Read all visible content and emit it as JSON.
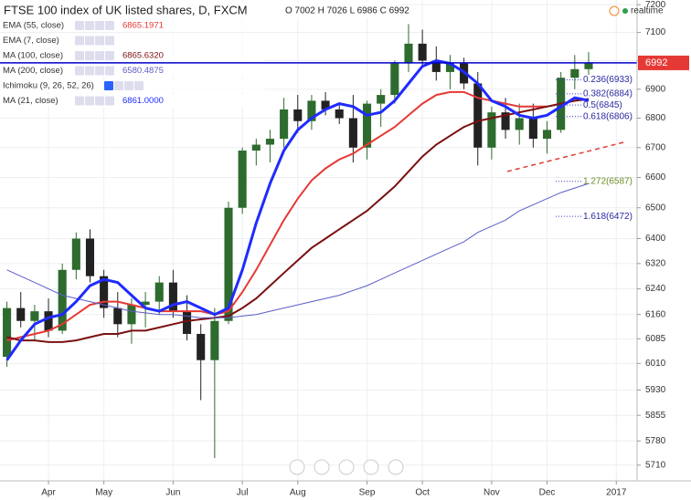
{
  "chart_data": {
    "type": "candlestick",
    "title": "FTSE 100 index of UK listed shares, D, FXCM",
    "ohlc_text": "O 7002 H 7026 L 6986 C 6992",
    "status": "realtime",
    "log_scale": true,
    "grid": true,
    "ylim": [
      5665,
      7217
    ],
    "yticks": [
      5710,
      5780,
      5855,
      5930,
      6010,
      6085,
      6160,
      6240,
      6320,
      6400,
      6500,
      6600,
      6700,
      6800,
      6900,
      7000,
      7100,
      7200
    ],
    "categories": [
      null,
      null,
      null,
      "Apr",
      null,
      null,
      null,
      "May",
      null,
      null,
      null,
      null,
      "Jun",
      null,
      null,
      null,
      null,
      "Jul",
      null,
      null,
      null,
      "Aug",
      null,
      null,
      null,
      null,
      "Sep",
      null,
      null,
      null,
      "Oct",
      null,
      null,
      null,
      null,
      "Nov",
      null,
      null,
      null,
      "Dec",
      null,
      null,
      null,
      null,
      "2017",
      null
    ],
    "up_color": "#2e6b2e",
    "down_color": "#222222",
    "open": [
      6030,
      6180,
      6140,
      6170,
      6110,
      6300,
      6400,
      6280,
      6180,
      6130,
      6190,
      6200,
      6260,
      6170,
      6100,
      6020,
      6140,
      6500,
      6690,
      6710,
      6730,
      6830,
      6790,
      6860,
      6830,
      6800,
      6700,
      6850,
      6880,
      6990,
      7060,
      7000,
      6960,
      6990,
      6920,
      6700,
      6820,
      6760,
      6800,
      6730,
      6760,
      6940,
      6970,
      null,
      null,
      null
    ],
    "high": [
      6200,
      6230,
      6190,
      6210,
      6320,
      6420,
      6430,
      6300,
      6230,
      6210,
      6230,
      6280,
      6300,
      6220,
      6130,
      6180,
      6520,
      6700,
      6730,
      6760,
      6870,
      6880,
      6880,
      6890,
      6850,
      6880,
      6860,
      6900,
      7000,
      7130,
      7110,
      7050,
      7020,
      7010,
      6960,
      6840,
      6870,
      6850,
      6850,
      6790,
      6960,
      7020,
      7030,
      null,
      null,
      null
    ],
    "low": [
      6000,
      6120,
      6080,
      6090,
      6100,
      6270,
      6260,
      6150,
      6090,
      6070,
      6120,
      6160,
      6150,
      6080,
      5900,
      5730,
      6130,
      6480,
      6640,
      6650,
      6700,
      6750,
      6760,
      6810,
      6780,
      6650,
      6660,
      6770,
      6850,
      6960,
      6980,
      6930,
      6900,
      6900,
      6640,
      6660,
      6730,
      6710,
      6700,
      6680,
      6750,
      6900,
      6950,
      null,
      null,
      null
    ],
    "close": [
      6180,
      6140,
      6170,
      6110,
      6300,
      6400,
      6280,
      6180,
      6130,
      6190,
      6200,
      6260,
      6170,
      6100,
      6020,
      6140,
      6500,
      6690,
      6710,
      6730,
      6830,
      6790,
      6860,
      6830,
      6800,
      6700,
      6850,
      6880,
      6990,
      7060,
      7000,
      6960,
      6990,
      6920,
      6700,
      6820,
      6760,
      6800,
      6730,
      6760,
      6940,
      6970,
      6992,
      null,
      null,
      null
    ],
    "series": [
      {
        "name": "EMA (55, close)",
        "color": "#e53935",
        "width": 2,
        "last_label": "6865.1971",
        "values": [
          6080,
          6090,
          6100,
          6110,
          6130,
          6160,
          6190,
          6200,
          6200,
          6190,
          6180,
          6170,
          6170,
          6170,
          6170,
          6160,
          6170,
          6230,
          6300,
          6380,
          6460,
          6530,
          6590,
          6630,
          6660,
          6680,
          6710,
          6740,
          6770,
          6810,
          6850,
          6880,
          6890,
          6890,
          6870,
          6860,
          6850,
          6840,
          6840,
          6840,
          6850,
          6860,
          6865,
          null,
          null,
          null
        ]
      },
      {
        "name": "EMA (7, close)",
        "color": "#888888"
      },
      {
        "name": "MA (100, close)",
        "color": "#7b1010",
        "width": 2,
        "last_label": "6865.6320",
        "values": [
          6090,
          6080,
          6080,
          6075,
          6075,
          6080,
          6090,
          6100,
          6100,
          6110,
          6110,
          6120,
          6130,
          6140,
          6145,
          6150,
          6155,
          6180,
          6210,
          6250,
          6290,
          6330,
          6370,
          6400,
          6430,
          6460,
          6490,
          6530,
          6570,
          6620,
          6670,
          6710,
          6740,
          6770,
          6790,
          6800,
          6810,
          6820,
          6830,
          6840,
          6850,
          6860,
          6866,
          null,
          null,
          null
        ]
      },
      {
        "name": "MA (200, close)",
        "color": "#5c5cc8",
        "width": 1,
        "last_label": "6580.4875",
        "values": [
          6300,
          6280,
          6260,
          6240,
          6220,
          6210,
          6200,
          6190,
          6180,
          6170,
          6165,
          6160,
          6160,
          6155,
          6150,
          6150,
          6150,
          6155,
          6160,
          6170,
          6180,
          6190,
          6200,
          6210,
          6220,
          6235,
          6250,
          6270,
          6290,
          6310,
          6330,
          6350,
          6370,
          6390,
          6420,
          6440,
          6460,
          6490,
          6510,
          6530,
          6550,
          6565,
          6580,
          null,
          null,
          null
        ]
      },
      {
        "name": "Ichimoku (9, 26, 52, 26)",
        "color": "#888888"
      },
      {
        "name": "MA (21, close)",
        "color": "#1f2bff",
        "width": 3,
        "last_label": "6861.0000",
        "values": [
          6020,
          6080,
          6130,
          6150,
          6160,
          6200,
          6250,
          6270,
          6260,
          6220,
          6180,
          6170,
          6190,
          6200,
          6180,
          6160,
          6180,
          6300,
          6450,
          6580,
          6690,
          6760,
          6800,
          6830,
          6850,
          6840,
          6810,
          6820,
          6860,
          6920,
          6980,
          7000,
          6990,
          6960,
          6920,
          6860,
          6840,
          6810,
          6800,
          6810,
          6840,
          6870,
          6861,
          null,
          null,
          null
        ]
      }
    ],
    "price_line": {
      "value": 6992,
      "label": "6992",
      "color": "#0000cc"
    },
    "trendline": [
      6620,
      6720
    ],
    "fib_levels": [
      {
        "value": 6933,
        "label": "0.236(6933)"
      },
      {
        "value": 6884,
        "label": "0.382(6884)"
      },
      {
        "value": 6845,
        "label": "0.5(6845)"
      },
      {
        "value": 6806,
        "label": "0.618(6806)"
      },
      {
        "value": 6587,
        "label": "1.272(6587)"
      },
      {
        "value": 6472,
        "label": "1.618(6472)"
      }
    ]
  }
}
